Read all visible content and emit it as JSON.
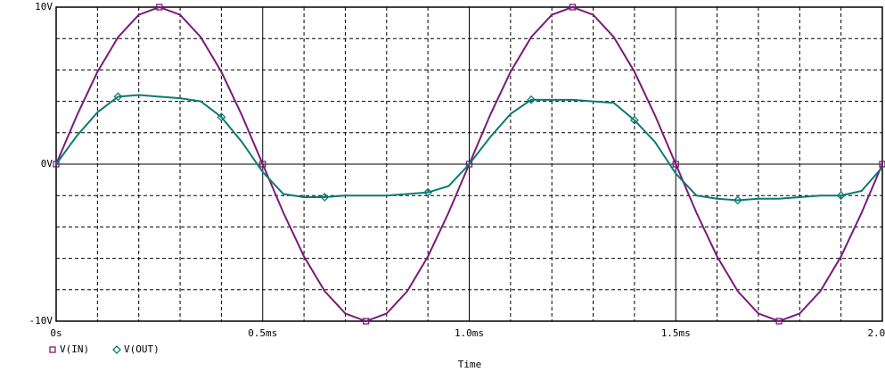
{
  "chart_data": {
    "type": "line",
    "x_label": "Time",
    "x": [
      0,
      0.05,
      0.1,
      0.15,
      0.2,
      0.25,
      0.3,
      0.35,
      0.4,
      0.45,
      0.5,
      0.55,
      0.6,
      0.65,
      0.7,
      0.75,
      0.8,
      0.85,
      0.9,
      0.95,
      1.0,
      1.05,
      1.1,
      1.15,
      1.2,
      1.25,
      1.3,
      1.35,
      1.4,
      1.45,
      1.5,
      1.55,
      1.6,
      1.65,
      1.7,
      1.75,
      1.8,
      1.85,
      1.9,
      1.95,
      2.0
    ],
    "series": [
      {
        "name": "V(IN)",
        "color": "#7a1a7a",
        "marker": "square",
        "values": [
          0,
          3.09,
          5.88,
          8.09,
          9.51,
          10,
          9.51,
          8.09,
          5.88,
          3.09,
          0,
          -3.09,
          -5.88,
          -8.09,
          -9.51,
          -10,
          -9.51,
          -8.09,
          -5.88,
          -3.09,
          0,
          3.09,
          5.88,
          8.09,
          9.51,
          10,
          9.51,
          8.09,
          5.88,
          3.09,
          0,
          -3.09,
          -5.88,
          -8.09,
          -9.51,
          -10,
          -9.51,
          -8.09,
          -5.88,
          -3.09,
          0
        ]
      },
      {
        "name": "V(OUT)",
        "color": "#0a7a72",
        "marker": "diamond",
        "values": [
          0,
          1.8,
          3.3,
          4.3,
          4.4,
          4.3,
          4.2,
          4.0,
          3.0,
          1.4,
          -0.5,
          -1.9,
          -2.1,
          -2.1,
          -2.0,
          -2.0,
          -2.0,
          -1.9,
          -1.8,
          -1.4,
          0,
          1.7,
          3.2,
          4.1,
          4.1,
          4.1,
          4.0,
          3.9,
          2.8,
          1.4,
          -0.6,
          -2.0,
          -2.2,
          -2.3,
          -2.2,
          -2.2,
          -2.1,
          -2.0,
          -2.0,
          -1.7,
          -0.2
        ]
      }
    ],
    "xlim": [
      0,
      2.0
    ],
    "xticks": [
      {
        "value": 0,
        "label": "0s"
      },
      {
        "value": 0.5,
        "label": "0.5ms"
      },
      {
        "value": 1.0,
        "label": "1.0ms"
      },
      {
        "value": 1.5,
        "label": "1.5ms"
      },
      {
        "value": 2.0,
        "label": "2.0ms"
      }
    ],
    "ylim": [
      -10,
      10
    ],
    "yticks": [
      {
        "value": -10,
        "label": "-10V"
      },
      {
        "value": 0,
        "label": "0V"
      },
      {
        "value": 10,
        "label": "10V"
      }
    ],
    "grid": true
  }
}
